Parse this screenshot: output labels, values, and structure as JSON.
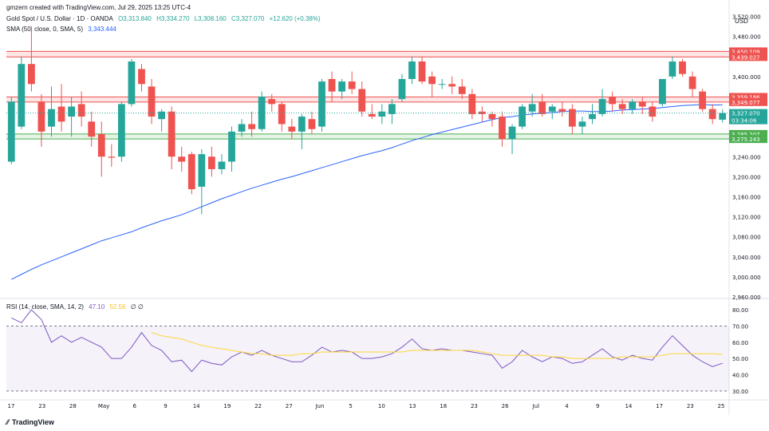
{
  "header": {
    "creator_line": "gmzern created with TradingView.com, Jul 29, 2025 13:25 UTC-4",
    "symbol": "Gold Spot / U.S. Dollar · 1D · OANDA",
    "o": "O3,313.840",
    "h": "H3,334.270",
    "l": "L3,308.160",
    "c": "C3,327.070",
    "change": "+12.620 (+0.38%)",
    "sma_label": "SMA (50, close, 0, SMA, 5)",
    "sma_value": "3,343.444",
    "rsi_label": "RSI (14, close, SMA, 14, 2)",
    "rsi_value": "47.10",
    "rsi_ma_value": "52.56",
    "rsi_extra": "∅ ∅",
    "currency": "USD",
    "footer_brand": "TradingView"
  },
  "colors": {
    "up": "#26a69a",
    "down": "#ef5350",
    "sma": "#2962ff",
    "rsi": "#7e57c2",
    "rsi_ma": "#fdd835",
    "resistance": "#ef5350",
    "support": "#4caf50"
  },
  "chart_data": [
    {
      "type": "candlestick",
      "title": "Gold Spot / U.S. Dollar · 1D · OANDA",
      "ylim": [
        2960,
        3540
      ],
      "y_ticks": [
        "3,520.000",
        "3,480.000",
        "3,440.000",
        "3,400.000",
        "3,360.000",
        "3,320.000",
        "3,280.000",
        "3,240.000",
        "3,200.000",
        "3,160.000",
        "3,120.000",
        "3,080.000",
        "3,040.000",
        "3,000.000",
        "2,960.000"
      ],
      "x_ticks": [
        "17",
        "23",
        "28",
        "May",
        "6",
        "9",
        "14",
        "19",
        "22",
        "27",
        "Jun",
        "5",
        "10",
        "13",
        "18",
        "23",
        "26",
        "Jul",
        "4",
        "9",
        "14",
        "17",
        "23",
        "25"
      ],
      "levels": [
        {
          "label": "3,450.109",
          "value": 3450.109,
          "kind": "resistance"
        },
        {
          "label": "3,439.027",
          "value": 3439.027,
          "kind": "resistance"
        },
        {
          "label": "3,359.186",
          "value": 3359.186,
          "kind": "resistance"
        },
        {
          "label": "3,349.077",
          "value": 3349.077,
          "kind": "resistance"
        },
        {
          "label": "3,285.207",
          "value": 3285.207,
          "kind": "support"
        },
        {
          "label": "3,275.243",
          "value": 3275.243,
          "kind": "support"
        }
      ],
      "last_price": {
        "label": "3,327.070",
        "value": 3327.07,
        "countdown": "03:34:06"
      },
      "candles": [
        {
          "o": 3230,
          "h": 3360,
          "l": 3225,
          "c": 3350
        },
        {
          "o": 3300,
          "h": 3440,
          "l": 3295,
          "c": 3425
        },
        {
          "o": 3425,
          "h": 3500,
          "l": 3370,
          "c": 3385
        },
        {
          "o": 3350,
          "h": 3365,
          "l": 3260,
          "c": 3290
        },
        {
          "o": 3300,
          "h": 3380,
          "l": 3280,
          "c": 3335
        },
        {
          "o": 3340,
          "h": 3385,
          "l": 3290,
          "c": 3310
        },
        {
          "o": 3320,
          "h": 3360,
          "l": 3280,
          "c": 3340
        },
        {
          "o": 3345,
          "h": 3370,
          "l": 3300,
          "c": 3320
        },
        {
          "o": 3310,
          "h": 3330,
          "l": 3260,
          "c": 3280
        },
        {
          "o": 3285,
          "h": 3310,
          "l": 3200,
          "c": 3240
        },
        {
          "o": 3240,
          "h": 3265,
          "l": 3220,
          "c": 3238
        },
        {
          "o": 3240,
          "h": 3350,
          "l": 3230,
          "c": 3345
        },
        {
          "o": 3345,
          "h": 3435,
          "l": 3340,
          "c": 3430
        },
        {
          "o": 3415,
          "h": 3425,
          "l": 3370,
          "c": 3385
        },
        {
          "o": 3380,
          "h": 3395,
          "l": 3305,
          "c": 3320
        },
        {
          "o": 3315,
          "h": 3335,
          "l": 3290,
          "c": 3330
        },
        {
          "o": 3330,
          "h": 3340,
          "l": 3215,
          "c": 3240
        },
        {
          "o": 3240,
          "h": 3260,
          "l": 3210,
          "c": 3230
        },
        {
          "o": 3245,
          "h": 3250,
          "l": 3165,
          "c": 3175
        },
        {
          "o": 3180,
          "h": 3255,
          "l": 3125,
          "c": 3245
        },
        {
          "o": 3240,
          "h": 3260,
          "l": 3200,
          "c": 3215
        },
        {
          "o": 3215,
          "h": 3245,
          "l": 3205,
          "c": 3230
        },
        {
          "o": 3230,
          "h": 3300,
          "l": 3210,
          "c": 3290
        },
        {
          "o": 3290,
          "h": 3315,
          "l": 3280,
          "c": 3305
        },
        {
          "o": 3305,
          "h": 3330,
          "l": 3280,
          "c": 3295
        },
        {
          "o": 3295,
          "h": 3370,
          "l": 3290,
          "c": 3360
        },
        {
          "o": 3355,
          "h": 3365,
          "l": 3330,
          "c": 3345
        },
        {
          "o": 3345,
          "h": 3350,
          "l": 3290,
          "c": 3305
        },
        {
          "o": 3300,
          "h": 3315,
          "l": 3275,
          "c": 3290
        },
        {
          "o": 3290,
          "h": 3325,
          "l": 3255,
          "c": 3320
        },
        {
          "o": 3315,
          "h": 3330,
          "l": 3285,
          "c": 3295
        },
        {
          "o": 3300,
          "h": 3395,
          "l": 3290,
          "c": 3390
        },
        {
          "o": 3395,
          "h": 3410,
          "l": 3350,
          "c": 3370
        },
        {
          "o": 3370,
          "h": 3395,
          "l": 3355,
          "c": 3390
        },
        {
          "o": 3390,
          "h": 3410,
          "l": 3365,
          "c": 3375
        },
        {
          "o": 3375,
          "h": 3390,
          "l": 3320,
          "c": 3330
        },
        {
          "o": 3325,
          "h": 3345,
          "l": 3315,
          "c": 3320
        },
        {
          "o": 3320,
          "h": 3345,
          "l": 3305,
          "c": 3330
        },
        {
          "o": 3325,
          "h": 3355,
          "l": 3305,
          "c": 3345
        },
        {
          "o": 3355,
          "h": 3405,
          "l": 3350,
          "c": 3395
        },
        {
          "o": 3395,
          "h": 3440,
          "l": 3385,
          "c": 3430
        },
        {
          "o": 3430,
          "h": 3440,
          "l": 3385,
          "c": 3390
        },
        {
          "o": 3400,
          "h": 3410,
          "l": 3360,
          "c": 3385
        },
        {
          "o": 3385,
          "h": 3395,
          "l": 3375,
          "c": 3385
        },
        {
          "o": 3385,
          "h": 3400,
          "l": 3365,
          "c": 3380
        },
        {
          "o": 3380,
          "h": 3395,
          "l": 3355,
          "c": 3365
        },
        {
          "o": 3365,
          "h": 3375,
          "l": 3315,
          "c": 3325
        },
        {
          "o": 3330,
          "h": 3340,
          "l": 3310,
          "c": 3325
        },
        {
          "o": 3325,
          "h": 3330,
          "l": 3300,
          "c": 3315
        },
        {
          "o": 3320,
          "h": 3330,
          "l": 3260,
          "c": 3275
        },
        {
          "o": 3275,
          "h": 3305,
          "l": 3245,
          "c": 3300
        },
        {
          "o": 3300,
          "h": 3345,
          "l": 3295,
          "c": 3340
        },
        {
          "o": 3330,
          "h": 3365,
          "l": 3320,
          "c": 3345
        },
        {
          "o": 3350,
          "h": 3365,
          "l": 3320,
          "c": 3325
        },
        {
          "o": 3330,
          "h": 3345,
          "l": 3315,
          "c": 3340
        },
        {
          "o": 3335,
          "h": 3350,
          "l": 3320,
          "c": 3330
        },
        {
          "o": 3335,
          "h": 3345,
          "l": 3285,
          "c": 3300
        },
        {
          "o": 3300,
          "h": 3320,
          "l": 3285,
          "c": 3310
        },
        {
          "o": 3315,
          "h": 3345,
          "l": 3305,
          "c": 3325
        },
        {
          "o": 3325,
          "h": 3375,
          "l": 3320,
          "c": 3355
        },
        {
          "o": 3360,
          "h": 3370,
          "l": 3330,
          "c": 3345
        },
        {
          "o": 3345,
          "h": 3355,
          "l": 3325,
          "c": 3335
        },
        {
          "o": 3335,
          "h": 3355,
          "l": 3325,
          "c": 3350
        },
        {
          "o": 3350,
          "h": 3360,
          "l": 3325,
          "c": 3340
        },
        {
          "o": 3340,
          "h": 3350,
          "l": 3310,
          "c": 3320
        },
        {
          "o": 3345,
          "h": 3395,
          "l": 3340,
          "c": 3395
        },
        {
          "o": 3400,
          "h": 3440,
          "l": 3395,
          "c": 3430
        },
        {
          "o": 3430,
          "h": 3435,
          "l": 3400,
          "c": 3405
        },
        {
          "o": 3400,
          "h": 3410,
          "l": 3360,
          "c": 3375
        },
        {
          "o": 3370,
          "h": 3375,
          "l": 3330,
          "c": 3335
        },
        {
          "o": 3335,
          "h": 3345,
          "l": 3305,
          "c": 3315
        },
        {
          "o": 3313.84,
          "h": 3334.27,
          "l": 3308.16,
          "c": 3327.07
        }
      ],
      "sma": [
        2995,
        3005,
        3015,
        3024,
        3032,
        3040,
        3048,
        3056,
        3064,
        3072,
        3078,
        3084,
        3090,
        3098,
        3105,
        3112,
        3118,
        3124,
        3132,
        3140,
        3148,
        3156,
        3163,
        3170,
        3177,
        3183,
        3189,
        3195,
        3200,
        3206,
        3212,
        3218,
        3224,
        3230,
        3236,
        3242,
        3247,
        3252,
        3258,
        3265,
        3272,
        3278,
        3284,
        3289,
        3294,
        3299,
        3304,
        3309,
        3314,
        3318,
        3320,
        3323,
        3325,
        3327,
        3328,
        3330,
        3331,
        3331,
        3330,
        3330,
        3331,
        3333,
        3334,
        3335,
        3336,
        3338,
        3340,
        3342,
        3343,
        3344,
        3343,
        3343.444
      ]
    },
    {
      "type": "line",
      "title": "RSI (14, close, SMA, 14, 2)",
      "ylim": [
        25,
        85
      ],
      "y_ticks": [
        "80.00",
        "70.00",
        "60.00",
        "50.00",
        "40.00",
        "30.00"
      ],
      "bands": {
        "upper": 70,
        "lower": 30
      },
      "series": [
        {
          "name": "RSI",
          "values": [
            75,
            72,
            80,
            74,
            60,
            64,
            60,
            63,
            60,
            57,
            50,
            50,
            57,
            66,
            58,
            55,
            48,
            49,
            42,
            49,
            47,
            46,
            51,
            54,
            52,
            55,
            52,
            50,
            48,
            48,
            52,
            57,
            54,
            55,
            54,
            50,
            50,
            51,
            53,
            57,
            62,
            56,
            55,
            56,
            55,
            55,
            54,
            53,
            52,
            44,
            48,
            55,
            51,
            48,
            51,
            50,
            47,
            48,
            52,
            56,
            51,
            49,
            52,
            50,
            49,
            57,
            64,
            58,
            52,
            48,
            45,
            47.1
          ]
        },
        {
          "name": "RSI-based MA",
          "values": [
            null,
            null,
            null,
            null,
            null,
            null,
            null,
            null,
            null,
            null,
            null,
            null,
            null,
            null,
            66,
            64,
            63,
            62,
            60,
            58,
            57,
            56,
            55,
            54,
            53,
            53,
            52,
            52,
            52,
            53,
            53,
            54,
            54,
            54,
            54,
            54,
            54,
            54,
            54,
            54,
            55,
            55,
            55,
            55,
            55,
            55,
            55,
            54,
            53,
            52,
            52,
            52,
            52,
            52,
            51,
            51,
            50,
            50,
            50,
            50,
            50,
            51,
            51,
            51,
            51,
            52,
            53,
            53,
            53,
            53,
            53,
            52.56
          ]
        }
      ]
    }
  ]
}
